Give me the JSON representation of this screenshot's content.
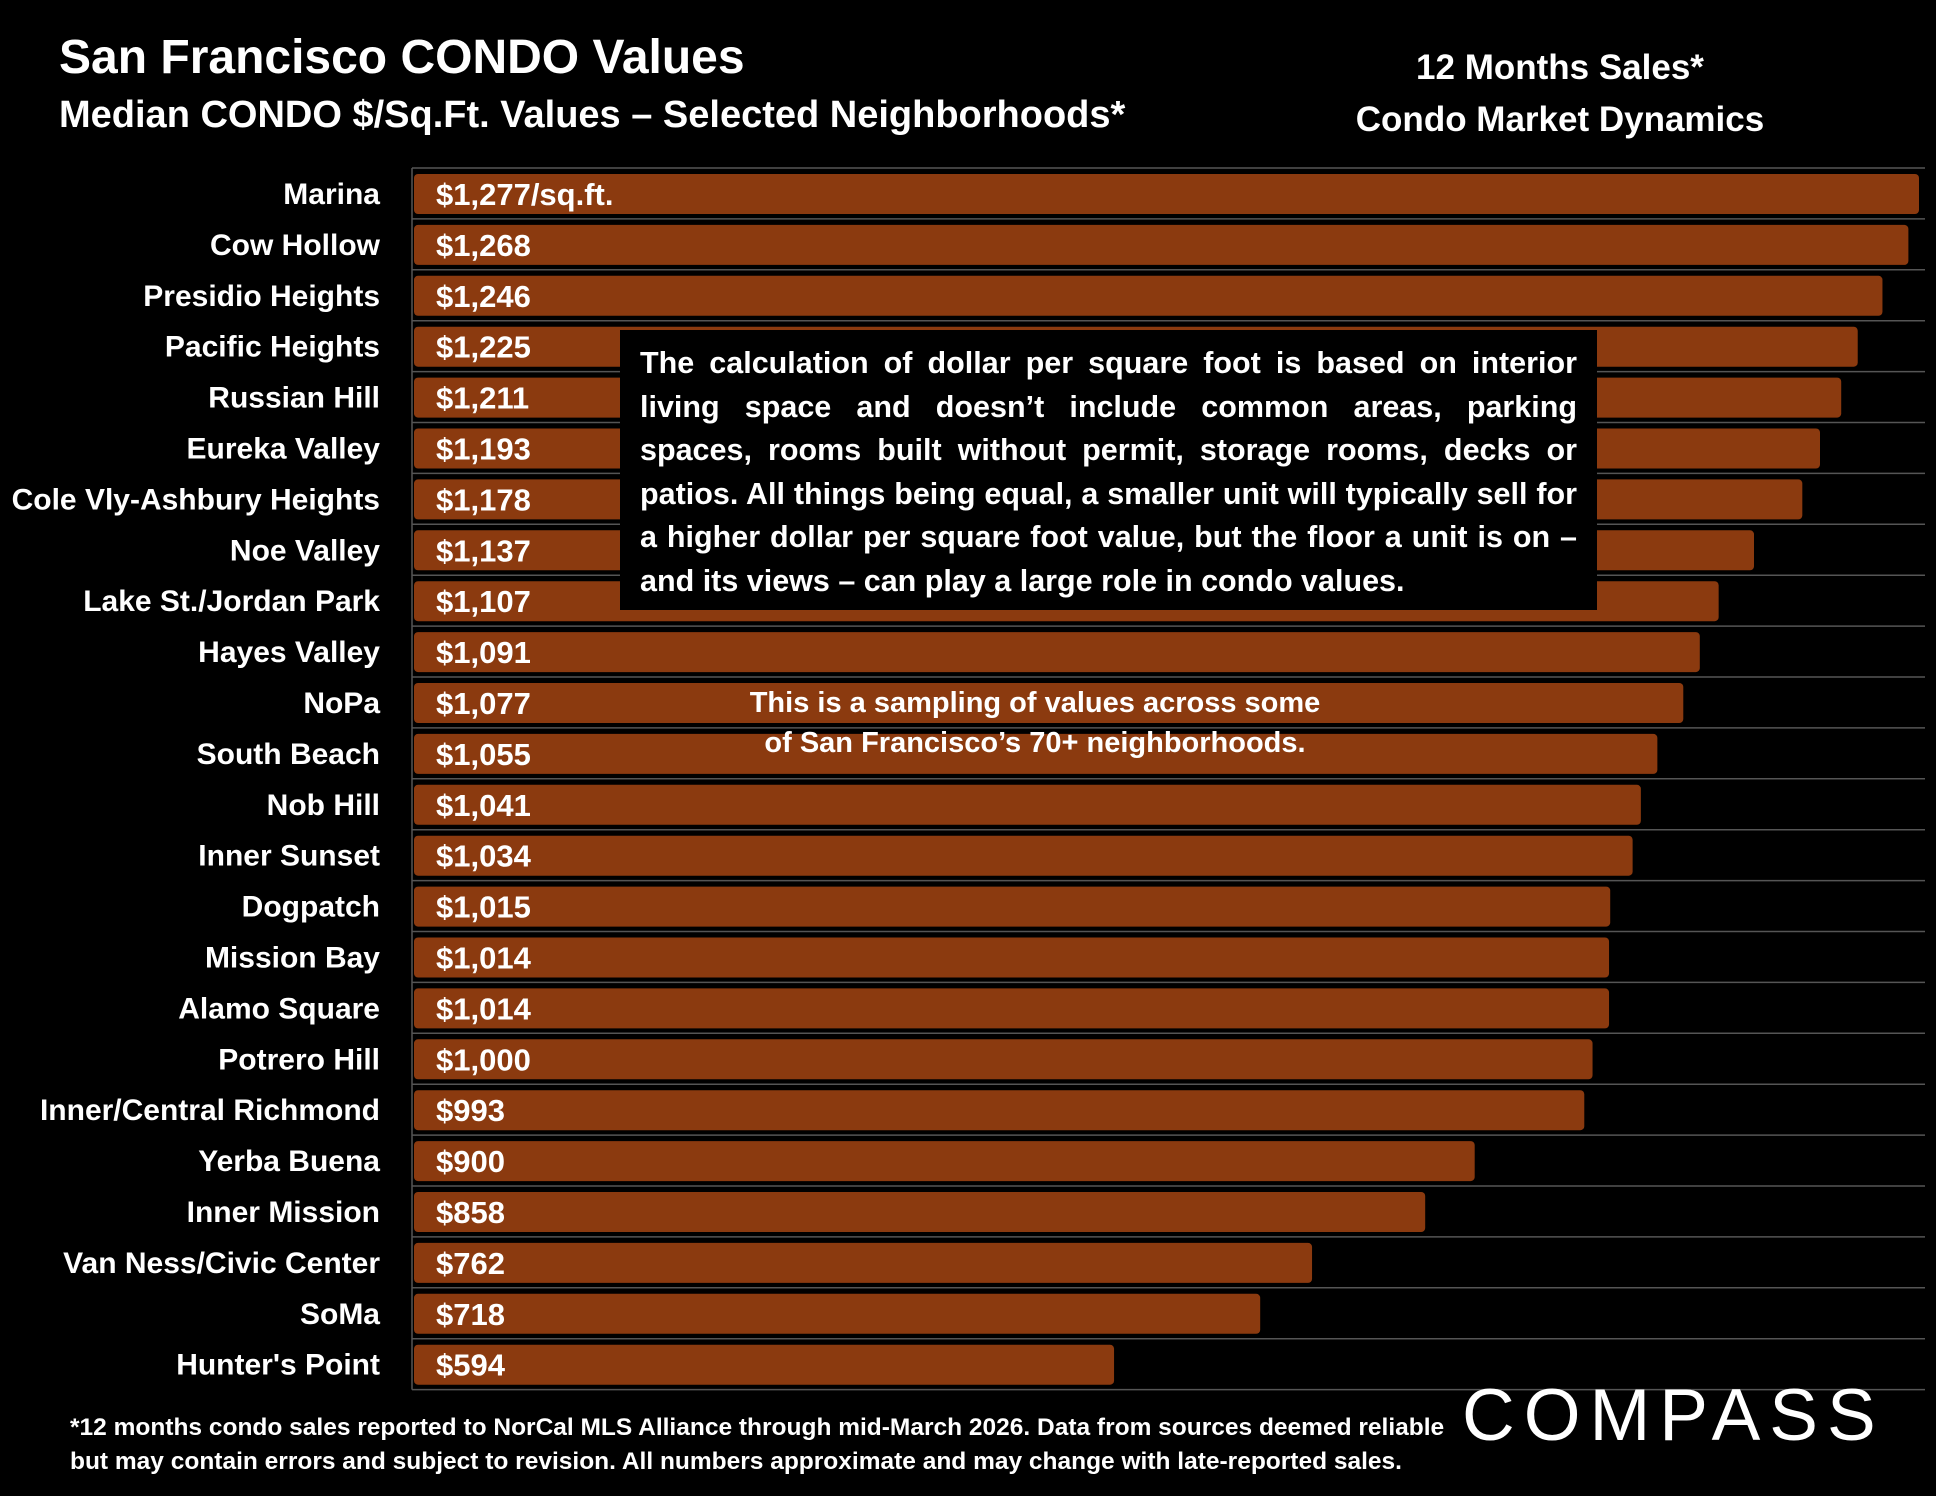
{
  "header": {
    "title": "San Francisco CONDO Values",
    "subtitle": "Median CONDO $/Sq.Ft. Values – Selected Neighborhoods*",
    "side_line1": "12 Months Sales*",
    "side_line2": "Condo Market Dynamics"
  },
  "info_box": "The calculation of dollar per square foot is based on interior living space and doesn’t include common areas, parking spaces, rooms built without permit, storage rooms, decks or patios. All things being equal, a smaller unit will typically sell for a higher dollar per square foot value, but the floor a unit is on – and its views – can play a large role in condo values.",
  "sampling_note": {
    "line1": "This is a sampling of values across some",
    "line2": "of San Francisco’s 70+ neighborhoods."
  },
  "footnote": {
    "line1": "*12 months condo sales reported to NorCal MLS Alliance through mid-March 2026. Data from sources deemed reliable",
    "line2": "but may contain errors and subject to revision. All numbers approximate and may change with late-reported sales."
  },
  "logo": "COMPASS",
  "colors": {
    "background": "#000000",
    "bar": "#8B3A0F",
    "gridline": "#555555",
    "text": "#ffffff"
  },
  "chart_data": {
    "type": "bar",
    "orientation": "horizontal",
    "categories": [
      "Marina",
      "Cow Hollow",
      "Presidio Heights",
      "Pacific Heights",
      "Russian Hill",
      "Eureka Valley",
      "Cole Vly-Ashbury Heights",
      "Noe Valley",
      "Lake St./Jordan Park",
      "Hayes Valley",
      "NoPa",
      "South Beach",
      "Nob Hill",
      "Inner Sunset",
      "Dogpatch",
      "Mission Bay",
      "Alamo Square",
      "Potrero Hill",
      "Inner/Central Richmond",
      "Yerba Buena",
      "Inner Mission",
      "Van Ness/Civic Center",
      "SoMa",
      "Hunter's Point"
    ],
    "values": [
      1277,
      1268,
      1246,
      1225,
      1211,
      1193,
      1178,
      1137,
      1107,
      1091,
      1077,
      1055,
      1041,
      1034,
      1015,
      1014,
      1014,
      1000,
      993,
      900,
      858,
      762,
      718,
      594
    ],
    "value_labels": [
      "$1,277/sq.ft.",
      "$1,268",
      "$1,246",
      "$1,225",
      "$1,211",
      "$1,193",
      "$1,178",
      "$1,137",
      "$1,107",
      "$1,091",
      "$1,077",
      "$1,055",
      "$1,041",
      "$1,034",
      "$1,015",
      "$1,014",
      "$1,014",
      "$1,000",
      "$993",
      "$900",
      "$858",
      "$762",
      "$718",
      "$594"
    ],
    "xlim": [
      0,
      1277
    ],
    "grid": true,
    "legend": "none"
  }
}
